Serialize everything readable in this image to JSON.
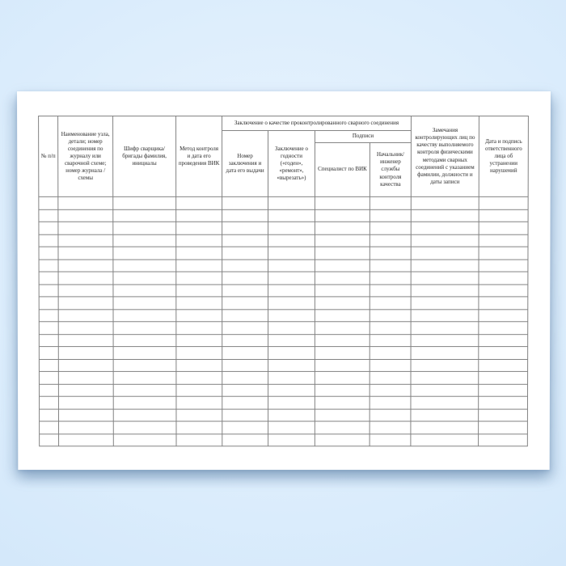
{
  "document": {
    "type": "blank-journal-form",
    "language": "ru"
  },
  "colors": {
    "background_center": "#eaf4fe",
    "background_edge": "#cbe2f6",
    "paper": "#ffffff",
    "table_border": "#828282",
    "text": "#262626"
  },
  "table": {
    "group_headers": {
      "conclusion": "Заключение о качестве проконтролированного сварного соединения",
      "signatures": "Подписи"
    },
    "columns": [
      {
        "label": "№ п/п"
      },
      {
        "label": "Наименование узла, детали; номер соединения по журналу или сварочной схеме; номер журнала /схемы"
      },
      {
        "label": "Шифр сварщика/бригады фамилия, инициалы"
      },
      {
        "label": "Метод контроля и дата его проведения ВИК"
      },
      {
        "label": "Номер заключения и дата его выдачи"
      },
      {
        "label": "Заключение о годности («годен», «ремонт», «вырезать»)"
      },
      {
        "label": "Специалист по ВИК"
      },
      {
        "label": "Начальник/ инженер службы контроля качества"
      },
      {
        "label": "Замечания контролирующих лиц по качеству выполняемого контроля физическими методами сварных соединений с указанием фамилии, должности и даты записи"
      },
      {
        "label": "Дата и подпись ответственного лица об устранении нарушений"
      }
    ],
    "body_row_count": 20,
    "body_col_count": 10,
    "body_cells_empty": true
  }
}
